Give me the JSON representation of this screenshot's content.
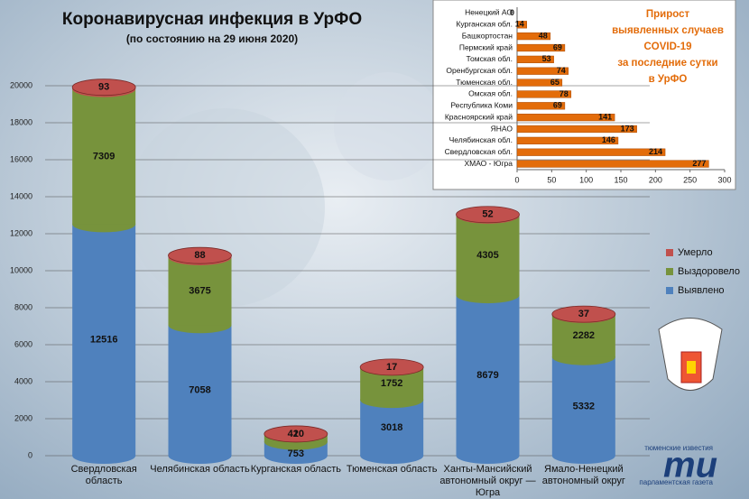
{
  "chart_data": [
    {
      "type": "stacked-cylinder",
      "title": "Коронавирусная инфекция в УрФО",
      "subtitle": "(по состоянию на 29 июня 2020)",
      "categories": [
        "Свердловская область",
        "Челябинская область",
        "Курганская область",
        "Тюменская область",
        "Ханты-Мансийский автономный округ — Югра",
        "Ямало-Ненецкий автономный округ"
      ],
      "series": [
        {
          "name": "Выявлено",
          "color": "#4f81bd",
          "values": [
            12516,
            7058,
            753,
            3018,
            8679,
            5332
          ]
        },
        {
          "name": "Выздоровело",
          "color": "#77933c",
          "values": [
            7309,
            3675,
            420,
            1752,
            4305,
            2282
          ]
        },
        {
          "name": "Умерло",
          "color": "#c0504d",
          "values": [
            93,
            88,
            1,
            17,
            52,
            37
          ]
        }
      ],
      "ylim": [
        0,
        20000
      ],
      "yticks": [
        0,
        2000,
        4000,
        6000,
        8000,
        10000,
        12000,
        14000,
        16000,
        18000,
        20000
      ],
      "grid": true,
      "legend": "right"
    },
    {
      "type": "hbar",
      "title": [
        "Прирост",
        "выявленных случаев",
        "COVID-19",
        "за последние сутки",
        "в УрФО"
      ],
      "categories": [
        "Ненецкий АО",
        "Курганская обл.",
        "Башкортостан",
        "Пермский край",
        "Томская обл.",
        "Оренбургская обл.",
        "Тюменская обл.",
        "Омская обл.",
        "Республика Коми",
        "Красноярский край",
        "ЯНАО",
        "Челябинская обл.",
        "Свердловская обл.",
        "ХМАО - Югра"
      ],
      "values": [
        0,
        14,
        48,
        69,
        53,
        74,
        65,
        78,
        69,
        141,
        173,
        146,
        214,
        277
      ],
      "color": "#e36c0a",
      "xlim": [
        0,
        300
      ],
      "xticks": [
        0,
        50,
        100,
        150,
        200,
        250,
        300
      ]
    }
  ],
  "logo": {
    "top": "тюменские известия",
    "mark": "ти",
    "bottom": "парламентская газета"
  }
}
